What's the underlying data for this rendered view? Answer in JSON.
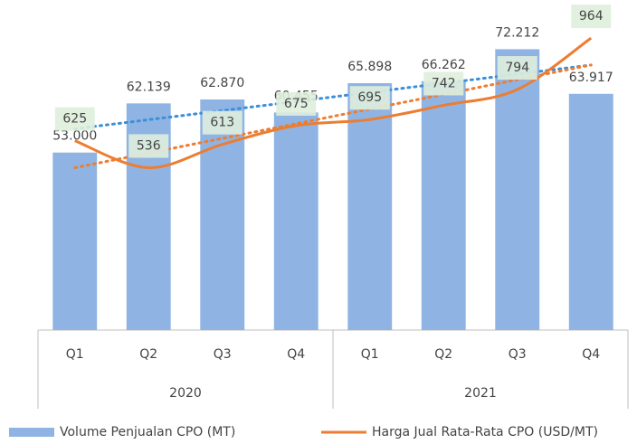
{
  "chart_data": {
    "type": "bar",
    "categories": [
      "Q1",
      "Q2",
      "Q3",
      "Q4",
      "Q1",
      "Q2",
      "Q3",
      "Q4"
    ],
    "year_groups": [
      "2020",
      "2021"
    ],
    "ylim": [
      20000,
      78000
    ],
    "y2lim": [
      0,
      1030
    ],
    "series": [
      {
        "name": "Volume Penjualan CPO (MT)",
        "type": "bar",
        "color": "#8fb4e3",
        "values": [
          53000,
          62139,
          62870,
          60455,
          65898,
          66262,
          72212,
          63917
        ],
        "value_labels": [
          "53.000",
          "62.139",
          "62.870",
          "60.455",
          "65.898",
          "66.262",
          "72.212",
          "63.917"
        ]
      },
      {
        "name": "Harga Jual Rata-Rata CPO (USD/MT)",
        "type": "line",
        "axis": "y2",
        "color": "#ed7d31",
        "values": [
          625,
          536,
          613,
          675,
          695,
          742,
          794,
          964
        ]
      }
    ],
    "trendline": true
  }
}
